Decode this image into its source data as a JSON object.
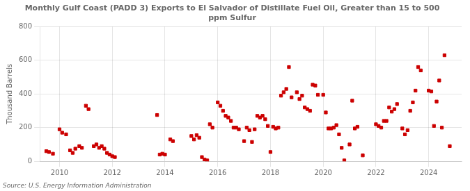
{
  "chart_data": {
    "type": "scatter",
    "title": "Monthly Gulf Coast (PADD 3) Exports to El Salvador of Distillate Fuel Oil, Greater than 15 to 500\nppm Sulfur",
    "ylabel": "Thousand Barrels",
    "source": "Source: U.S. Energy Information Administration",
    "color": "#cc0000",
    "marker": "square",
    "grid": true,
    "xlim": [
      2009.25,
      2025.25
    ],
    "xticks": [
      2010,
      2012,
      2014,
      2016,
      2018,
      2020,
      2022,
      2024
    ],
    "ylim": [
      0,
      800
    ],
    "yticks": [
      0,
      200,
      400,
      600,
      800
    ],
    "x": [
      2009.5,
      2009.6,
      2009.75,
      2010.0,
      2010.1,
      2010.25,
      2010.4,
      2010.5,
      2010.6,
      2010.75,
      2010.85,
      2011.0,
      2011.1,
      2011.3,
      2011.4,
      2011.5,
      2011.6,
      2011.7,
      2011.8,
      2011.9,
      2012.0,
      2012.1,
      2013.7,
      2013.8,
      2013.9,
      2014.0,
      2014.2,
      2014.3,
      2015.0,
      2015.1,
      2015.2,
      2015.3,
      2015.4,
      2015.5,
      2015.6,
      2015.7,
      2015.8,
      2016.0,
      2016.1,
      2016.2,
      2016.3,
      2016.4,
      2016.5,
      2016.6,
      2016.7,
      2016.8,
      2017.0,
      2017.1,
      2017.2,
      2017.3,
      2017.4,
      2017.5,
      2017.6,
      2017.7,
      2017.8,
      2017.9,
      2018.0,
      2018.1,
      2018.2,
      2018.3,
      2018.4,
      2018.5,
      2018.6,
      2018.7,
      2018.8,
      2019.0,
      2019.1,
      2019.2,
      2019.3,
      2019.4,
      2019.5,
      2019.6,
      2019.7,
      2019.8,
      2020.0,
      2020.1,
      2020.2,
      2020.3,
      2020.4,
      2020.5,
      2020.6,
      2020.7,
      2020.8,
      2021.0,
      2021.1,
      2021.2,
      2021.3,
      2021.5,
      2022.0,
      2022.1,
      2022.2,
      2022.3,
      2022.4,
      2022.5,
      2022.6,
      2022.7,
      2022.8,
      2023.0,
      2023.1,
      2023.2,
      2023.3,
      2023.4,
      2023.5,
      2023.6,
      2023.7,
      2024.0,
      2024.1,
      2024.2,
      2024.3,
      2024.4,
      2024.5,
      2024.6,
      2024.8
    ],
    "values": [
      60,
      55,
      45,
      190,
      170,
      160,
      65,
      50,
      75,
      90,
      80,
      330,
      310,
      90,
      100,
      80,
      90,
      75,
      50,
      40,
      30,
      25,
      275,
      40,
      45,
      40,
      130,
      120,
      150,
      130,
      155,
      140,
      25,
      10,
      5,
      220,
      200,
      350,
      330,
      300,
      270,
      260,
      240,
      200,
      200,
      190,
      120,
      200,
      185,
      115,
      190,
      270,
      260,
      270,
      250,
      210,
      55,
      205,
      195,
      200,
      390,
      410,
      430,
      560,
      380,
      410,
      370,
      390,
      320,
      310,
      300,
      455,
      450,
      395,
      395,
      290,
      195,
      195,
      200,
      215,
      160,
      80,
      5,
      100,
      360,
      195,
      205,
      35,
      220,
      210,
      200,
      240,
      240,
      320,
      295,
      310,
      340,
      195,
      160,
      185,
      300,
      350,
      420,
      560,
      540,
      420,
      415,
      210,
      355,
      480,
      200,
      630,
      90
    ]
  }
}
